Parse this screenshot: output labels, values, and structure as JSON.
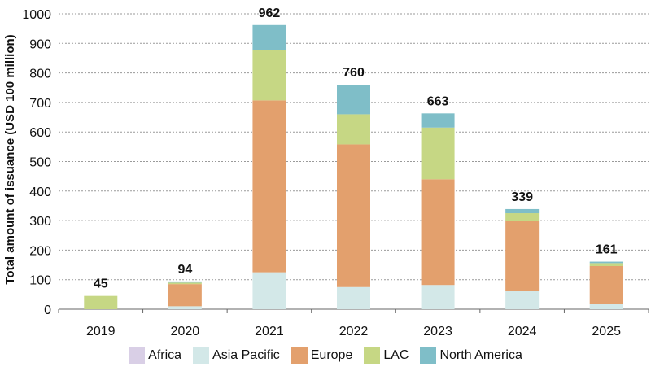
{
  "chart_data": {
    "type": "bar",
    "stacked": true,
    "ylabel": "Total amount of issuance (USD 100 million)",
    "ylim": [
      0,
      1000
    ],
    "yticks": [
      0,
      100,
      200,
      300,
      400,
      500,
      600,
      700,
      800,
      900,
      1000
    ],
    "categories": [
      "2019",
      "2020",
      "2021",
      "2022",
      "2023",
      "2024",
      "2025"
    ],
    "series": [
      {
        "name": "Africa",
        "color": "#d9cfe6",
        "values": [
          0,
          0,
          0,
          0,
          0,
          0,
          0
        ]
      },
      {
        "name": "Asia Pacific",
        "color": "#d3e8e8",
        "values": [
          0,
          10,
          125,
          75,
          82,
          62,
          18
        ]
      },
      {
        "name": "Europe",
        "color": "#e3a06d",
        "values": [
          0,
          75,
          582,
          483,
          358,
          238,
          128
        ]
      },
      {
        "name": "LAC",
        "color": "#c6d784",
        "values": [
          45,
          5,
          170,
          102,
          175,
          25,
          10
        ]
      },
      {
        "name": "North America",
        "color": "#7fbec8",
        "values": [
          0,
          4,
          85,
          100,
          48,
          14,
          5
        ]
      }
    ],
    "totals": [
      "45",
      "94",
      "962",
      "760",
      "663",
      "339",
      "161"
    ],
    "legend_position": "bottom"
  }
}
